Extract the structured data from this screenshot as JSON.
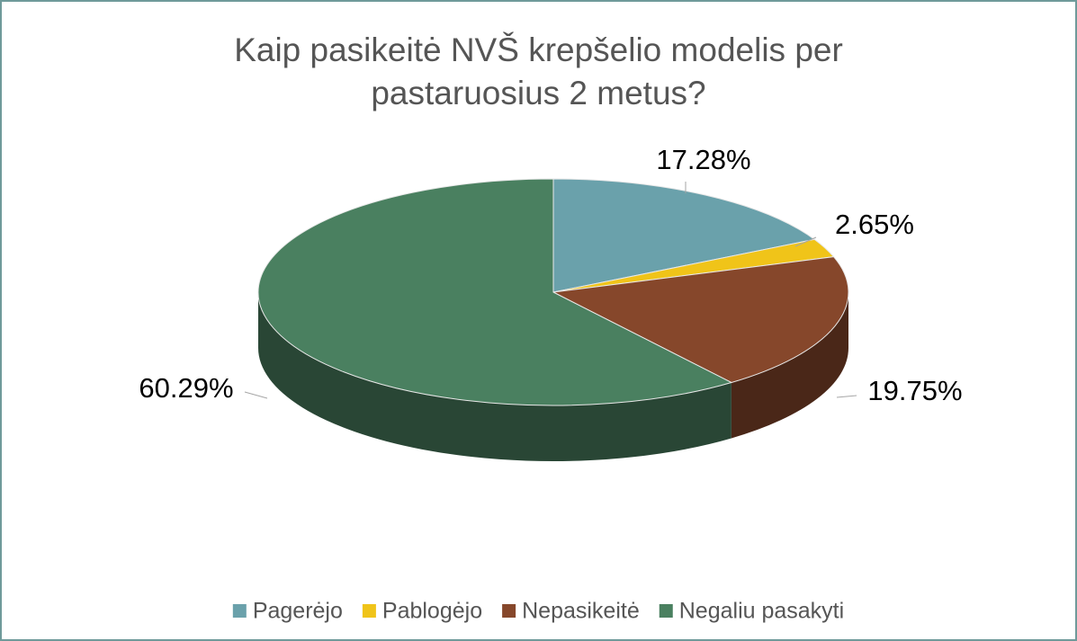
{
  "chart_data": {
    "type": "pie",
    "title": "Kaip pasikeitė NVŠ krepšelio modelis per pastaruosius 2 metus?",
    "categories": [
      "Pagerėjo",
      "Pablogėjo",
      "Nepasikeitė",
      "Negaliu pasakyti"
    ],
    "values": [
      17.28,
      2.65,
      19.75,
      60.29
    ],
    "value_labels": [
      "17.28%",
      "2.65%",
      "19.75%",
      "60.29%"
    ],
    "colors": [
      "#6aa1ab",
      "#f0c419",
      "#86472b",
      "#4a8060"
    ],
    "legend": "bottom"
  }
}
